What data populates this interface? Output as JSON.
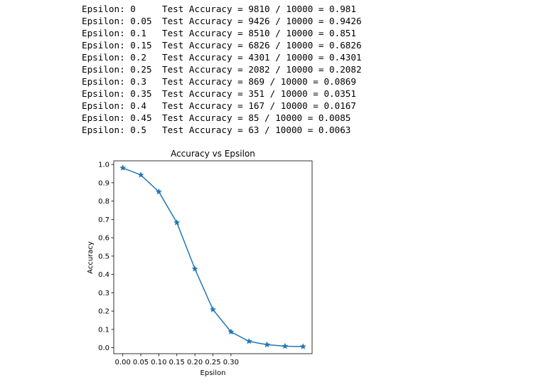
{
  "console": {
    "lines": [
      {
        "epsilon": "Epsilon: 0",
        "result": "Test Accuracy = 9810 / 10000 = 0.981"
      },
      {
        "epsilon": "Epsilon: 0.05",
        "result": "Test Accuracy = 9426 / 10000 = 0.9426"
      },
      {
        "epsilon": "Epsilon: 0.1",
        "result": "Test Accuracy = 8510 / 10000 = 0.851"
      },
      {
        "epsilon": "Epsilon: 0.15",
        "result": "Test Accuracy = 6826 / 10000 = 0.6826"
      },
      {
        "epsilon": "Epsilon: 0.2",
        "result": "Test Accuracy = 4301 / 10000 = 0.4301"
      },
      {
        "epsilon": "Epsilon: 0.25",
        "result": "Test Accuracy = 2082 / 10000 = 0.2082"
      },
      {
        "epsilon": "Epsilon: 0.3",
        "result": "Test Accuracy = 869 / 10000 = 0.0869"
      },
      {
        "epsilon": "Epsilon: 0.35",
        "result": "Test Accuracy = 351 / 10000 = 0.0351"
      },
      {
        "epsilon": "Epsilon: 0.4",
        "result": "Test Accuracy = 167 / 10000 = 0.0167"
      },
      {
        "epsilon": "Epsilon: 0.45",
        "result": "Test Accuracy = 85 / 10000 = 0.0085"
      },
      {
        "epsilon": "Epsilon: 0.5",
        "result": "Test Accuracy = 63 / 10000 = 0.0063"
      }
    ]
  },
  "chart_data": {
    "type": "line",
    "title": "Accuracy vs Epsilon",
    "xlabel": "Epsilon",
    "ylabel": "Accuracy",
    "x": [
      0,
      0.05,
      0.1,
      0.15,
      0.2,
      0.25,
      0.3,
      0.35,
      0.4,
      0.45,
      0.5
    ],
    "y": [
      0.981,
      0.9426,
      0.851,
      0.6826,
      0.4301,
      0.2082,
      0.0869,
      0.0351,
      0.0167,
      0.0085,
      0.0063
    ],
    "xticks": [
      0,
      0.05,
      0.1,
      0.15,
      0.2,
      0.25,
      0.3
    ],
    "xtick_labels": [
      "0.00",
      "0.05",
      "0.10",
      "0.15",
      "0.20",
      "0.25",
      "0.30"
    ],
    "yticks": [
      0.0,
      0.1,
      0.2,
      0.3,
      0.4,
      0.5,
      0.6,
      0.7,
      0.8,
      0.9,
      1.0
    ],
    "ytick_labels": [
      "0.0",
      "0.1",
      "0.2",
      "0.3",
      "0.4",
      "0.5",
      "0.6",
      "0.7",
      "0.8",
      "0.9",
      "1.0"
    ],
    "xlim": [
      -0.025,
      0.525
    ],
    "ylim": [
      -0.0324,
      1.0197
    ],
    "marker": "star",
    "grid": false,
    "line_color": "#1f77b4"
  }
}
